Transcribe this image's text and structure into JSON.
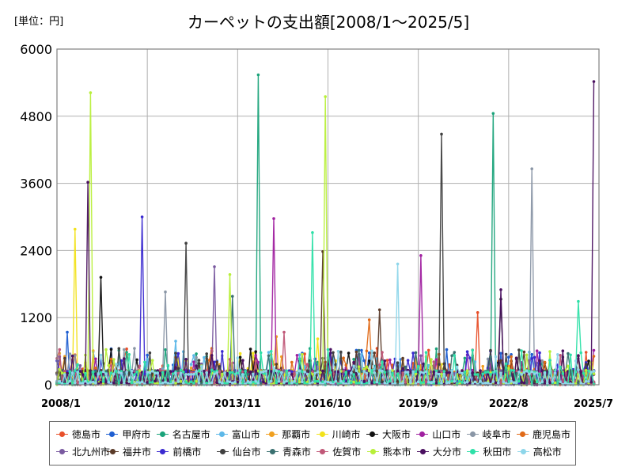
{
  "header": {
    "unit_label": "[単位：円]",
    "title": "カーペットの支出額[2008/1～2025/5]"
  },
  "chart_data": {
    "type": "line",
    "title": "カーペットの支出額[2008/1～2025/5]",
    "ylabel": "",
    "xlabel": "",
    "ylim": [
      0,
      6000
    ],
    "yticks": [
      "0",
      "1200",
      "2400",
      "3600",
      "4800",
      "6000"
    ],
    "xticks": [
      "2008/1",
      "2010/12",
      "2013/11",
      "2016/10",
      "2019/9",
      "2022/8",
      "2025/7"
    ],
    "grid": true,
    "legend_position": "bottom",
    "series": [
      {
        "name": "徳島市",
        "color": "#e8502a",
        "peaks": [
          [
            "2021/8",
            1290
          ]
        ]
      },
      {
        "name": "甲府市",
        "color": "#1f5fd1",
        "peaks": [
          [
            "2008/5",
            940
          ]
        ]
      },
      {
        "name": "名古屋市",
        "color": "#1aa37a",
        "peaks": [
          [
            "2014/7",
            5540
          ],
          [
            "2022/2",
            4850
          ]
        ]
      },
      {
        "name": "富山市",
        "color": "#5db8e8",
        "peaks": [
          [
            "2011/11",
            780
          ]
        ]
      },
      {
        "name": "那覇市",
        "color": "#f0a020",
        "peaks": [
          [
            "2015/2",
            860
          ]
        ]
      },
      {
        "name": "川崎市",
        "color": "#f2e21a",
        "peaks": [
          [
            "2008/8",
            2780
          ],
          [
            "2016/6",
            820
          ]
        ]
      },
      {
        "name": "大阪市",
        "color": "#111111",
        "peaks": [
          [
            "2009/6",
            1920
          ],
          [
            "2022/5",
            1530
          ]
        ]
      },
      {
        "name": "山口市",
        "color": "#a020a0",
        "peaks": [
          [
            "2015/1",
            2970
          ],
          [
            "2019/10",
            2310
          ]
        ]
      },
      {
        "name": "岐阜市",
        "color": "#8a96a6",
        "peaks": [
          [
            "2023/5",
            3860
          ],
          [
            "2011/7",
            1660
          ]
        ]
      },
      {
        "name": "鹿児島市",
        "color": "#e06a18",
        "peaks": [
          [
            "2018/2",
            1160
          ]
        ]
      },
      {
        "name": "北九州市",
        "color": "#7a5aa0",
        "peaks": [
          [
            "2013/2",
            2110
          ]
        ]
      },
      {
        "name": "福井市",
        "color": "#5a3a28",
        "peaks": [
          [
            "2016/8",
            2380
          ],
          [
            "2018/6",
            1340
          ]
        ]
      },
      {
        "name": "前橋市",
        "color": "#3a2ad0",
        "peaks": [
          [
            "2010/10",
            3000
          ]
        ]
      },
      {
        "name": "仙台市",
        "color": "#404040",
        "peaks": [
          [
            "2012/3",
            2530
          ],
          [
            "2020/6",
            4480
          ]
        ]
      },
      {
        "name": "青森市",
        "color": "#3a7070",
        "peaks": [
          [
            "2013/9",
            1580
          ]
        ]
      },
      {
        "name": "佐賀市",
        "color": "#c05878",
        "peaks": [
          [
            "2015/5",
            940
          ]
        ]
      },
      {
        "name": "熊本市",
        "color": "#b8ef3a",
        "peaks": [
          [
            "2009/2",
            5220
          ],
          [
            "2016/9",
            5150
          ],
          [
            "2013/8",
            1970
          ]
        ]
      },
      {
        "name": "大分市",
        "color": "#4a1060",
        "peaks": [
          [
            "2009/1",
            3620
          ],
          [
            "2025/5",
            5420
          ],
          [
            "2022/5",
            1700
          ]
        ]
      },
      {
        "name": "秋田市",
        "color": "#2ee0a8",
        "peaks": [
          [
            "2016/4",
            2720
          ],
          [
            "2024/11",
            1490
          ]
        ]
      },
      {
        "name": "高松市",
        "color": "#8ed6ea",
        "peaks": [
          [
            "2019/1",
            2160
          ]
        ]
      }
    ]
  }
}
